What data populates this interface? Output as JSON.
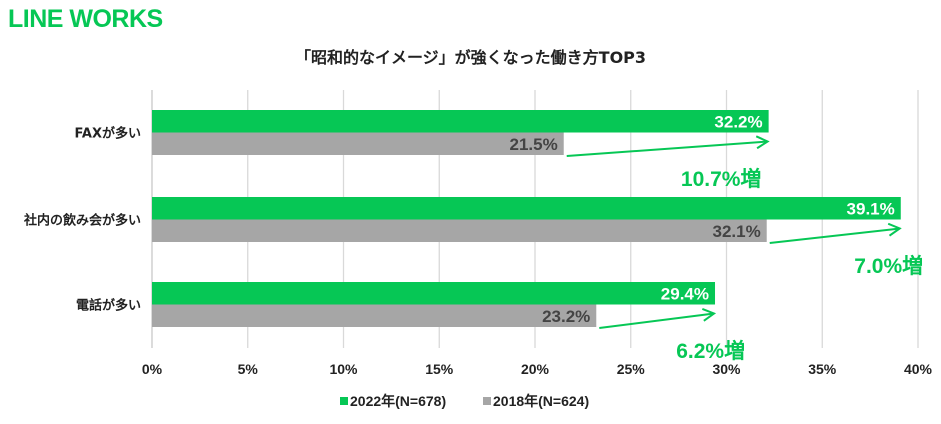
{
  "brand": {
    "logo_text": "LINE WORKS",
    "color": "#06c755"
  },
  "chart_data": {
    "type": "bar",
    "orientation": "horizontal",
    "title": "「昭和的なイメージ」が強くなった働き方TOP3",
    "categories": [
      "FAXが多い",
      "社内の飲み会が多い",
      "電話が多い"
    ],
    "series": [
      {
        "name": "2022年(N=678)",
        "color": "#06c755",
        "values": [
          32.2,
          39.1,
          29.4
        ],
        "labels": [
          "32.2%",
          "39.1%",
          "29.4%"
        ]
      },
      {
        "name": "2018年(N=624)",
        "color": "#a6a6a6",
        "values": [
          21.5,
          32.1,
          23.2
        ],
        "labels": [
          "21.5%",
          "32.1%",
          "23.2%"
        ]
      }
    ],
    "annotations": [
      "10.7%増",
      "7.0%増",
      "6.2%増"
    ],
    "xlim": [
      0,
      40
    ],
    "xticks": [
      0,
      5,
      10,
      15,
      20,
      25,
      30,
      35,
      40
    ],
    "xtick_labels": [
      "0%",
      "5%",
      "10%",
      "15%",
      "20%",
      "25%",
      "30%",
      "35%",
      "40%"
    ],
    "grid": true,
    "legend_position": "bottom",
    "xlabel": "",
    "ylabel": ""
  }
}
